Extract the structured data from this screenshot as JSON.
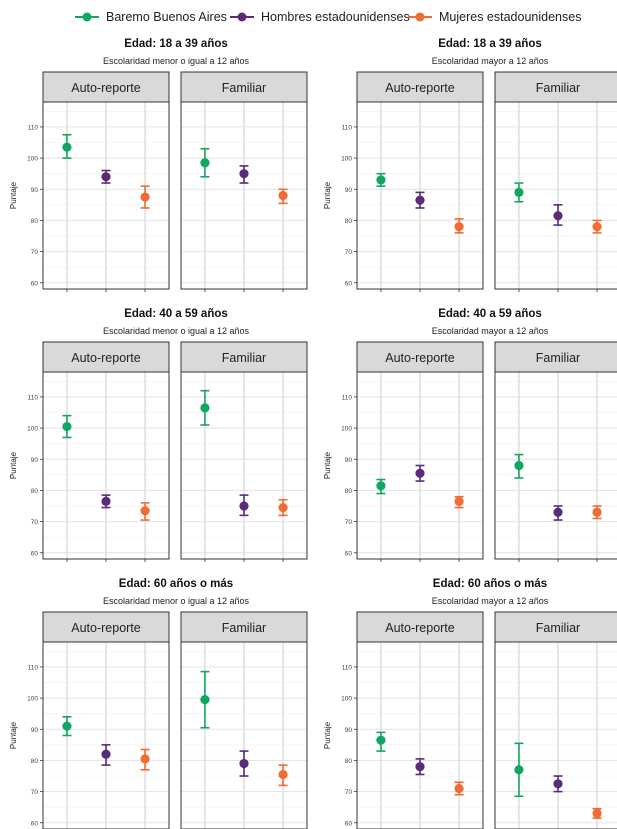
{
  "legend": {
    "items": [
      {
        "label": "Baremo Buenos Aires",
        "color": "#12a760"
      },
      {
        "label": "Hombres estadounidenses",
        "color": "#5b2a78"
      },
      {
        "label": "Mujeres estadounidenses",
        "color": "#ef6c35"
      }
    ]
  },
  "chart_data": [
    {
      "type": "scatter",
      "title": "Edad: 18 a 39 años",
      "subtitle": "Escolaridad menor o igual a 12 años",
      "ylabel": "Puntaje",
      "ylim": [
        58,
        118
      ],
      "yticks": [
        60,
        70,
        80,
        90,
        100,
        110
      ],
      "panels": [
        {
          "label": "Auto-reporte",
          "points": [
            {
              "series": "Baremo Buenos Aires",
              "y": 103.5,
              "lo": 100,
              "hi": 107.5
            },
            {
              "series": "Hombres estadounidenses",
              "y": 94,
              "lo": 92,
              "hi": 96
            },
            {
              "series": "Mujeres estadounidenses",
              "y": 87.5,
              "lo": 84,
              "hi": 91
            }
          ]
        },
        {
          "label": "Familiar",
          "points": [
            {
              "series": "Baremo Buenos Aires",
              "y": 98.5,
              "lo": 94,
              "hi": 103
            },
            {
              "series": "Hombres estadounidenses",
              "y": 95,
              "lo": 92,
              "hi": 97.5
            },
            {
              "series": "Mujeres estadounidenses",
              "y": 88,
              "lo": 85.5,
              "hi": 90
            }
          ]
        }
      ]
    },
    {
      "type": "scatter",
      "title": "Edad: 18 a 39 años",
      "subtitle": "Escolaridad mayor a 12 años",
      "ylabel": "Puntaje",
      "ylim": [
        58,
        118
      ],
      "yticks": [
        60,
        70,
        80,
        90,
        100,
        110
      ],
      "panels": [
        {
          "label": "Auto-reporte",
          "points": [
            {
              "series": "Baremo Buenos Aires",
              "y": 93,
              "lo": 91,
              "hi": 95
            },
            {
              "series": "Hombres estadounidenses",
              "y": 86.5,
              "lo": 84,
              "hi": 89
            },
            {
              "series": "Mujeres estadounidenses",
              "y": 78,
              "lo": 76,
              "hi": 80.5
            }
          ]
        },
        {
          "label": "Familiar",
          "points": [
            {
              "series": "Baremo Buenos Aires",
              "y": 89,
              "lo": 86,
              "hi": 92
            },
            {
              "series": "Hombres estadounidenses",
              "y": 81.5,
              "lo": 78.5,
              "hi": 85
            },
            {
              "series": "Mujeres estadounidenses",
              "y": 78,
              "lo": 76,
              "hi": 80
            }
          ]
        }
      ]
    },
    {
      "type": "scatter",
      "title": "Edad: 40 a 59 años",
      "subtitle": "Escolaridad menor o igual a 12 años",
      "ylabel": "Puntaje",
      "ylim": [
        58,
        118
      ],
      "yticks": [
        60,
        70,
        80,
        90,
        100,
        110
      ],
      "panels": [
        {
          "label": "Auto-reporte",
          "points": [
            {
              "series": "Baremo Buenos Aires",
              "y": 100.5,
              "lo": 97,
              "hi": 104
            },
            {
              "series": "Hombres estadounidenses",
              "y": 76.5,
              "lo": 74.5,
              "hi": 78.5
            },
            {
              "series": "Mujeres estadounidenses",
              "y": 73.5,
              "lo": 70.5,
              "hi": 76
            }
          ]
        },
        {
          "label": "Familiar",
          "points": [
            {
              "series": "Baremo Buenos Aires",
              "y": 106.5,
              "lo": 101,
              "hi": 112
            },
            {
              "series": "Hombres estadounidenses",
              "y": 75,
              "lo": 72,
              "hi": 78.5
            },
            {
              "series": "Mujeres estadounidenses",
              "y": 74.5,
              "lo": 72,
              "hi": 77
            }
          ]
        }
      ]
    },
    {
      "type": "scatter",
      "title": "Edad: 40 a 59 años",
      "subtitle": "Escolaridad mayor a 12 años",
      "ylabel": "Puntaje",
      "ylim": [
        58,
        118
      ],
      "yticks": [
        60,
        70,
        80,
        90,
        100,
        110
      ],
      "panels": [
        {
          "label": "Auto-reporte",
          "points": [
            {
              "series": "Baremo Buenos Aires",
              "y": 81.5,
              "lo": 79,
              "hi": 83.5
            },
            {
              "series": "Hombres estadounidenses",
              "y": 85.5,
              "lo": 83,
              "hi": 88
            },
            {
              "series": "Mujeres estadounidenses",
              "y": 76.5,
              "lo": 74.5,
              "hi": 78
            }
          ]
        },
        {
          "label": "Familiar",
          "points": [
            {
              "series": "Baremo Buenos Aires",
              "y": 88,
              "lo": 84,
              "hi": 91.5
            },
            {
              "series": "Hombres estadounidenses",
              "y": 73,
              "lo": 70.5,
              "hi": 75
            },
            {
              "series": "Mujeres estadounidenses",
              "y": 73,
              "lo": 71,
              "hi": 75
            }
          ]
        }
      ]
    },
    {
      "type": "scatter",
      "title": "Edad: 60 años o más",
      "subtitle": "Escolaridad menor o igual a 12 años",
      "ylabel": "Puntaje",
      "ylim": [
        58,
        118
      ],
      "yticks": [
        60,
        70,
        80,
        90,
        100,
        110
      ],
      "panels": [
        {
          "label": "Auto-reporte",
          "points": [
            {
              "series": "Baremo Buenos Aires",
              "y": 91,
              "lo": 88,
              "hi": 94
            },
            {
              "series": "Hombres estadounidenses",
              "y": 82,
              "lo": 78.5,
              "hi": 85
            },
            {
              "series": "Mujeres estadounidenses",
              "y": 80.5,
              "lo": 77,
              "hi": 83.5
            }
          ]
        },
        {
          "label": "Familiar",
          "points": [
            {
              "series": "Baremo Buenos Aires",
              "y": 99.5,
              "lo": 90.5,
              "hi": 108.5
            },
            {
              "series": "Hombres estadounidenses",
              "y": 79,
              "lo": 75,
              "hi": 83
            },
            {
              "series": "Mujeres estadounidenses",
              "y": 75.5,
              "lo": 72,
              "hi": 78.5
            }
          ]
        }
      ]
    },
    {
      "type": "scatter",
      "title": "Edad: 60 años o más",
      "subtitle": "Escolaridad mayor a 12 años",
      "ylabel": "Puntaje",
      "ylim": [
        58,
        118
      ],
      "yticks": [
        60,
        70,
        80,
        90,
        100,
        110
      ],
      "panels": [
        {
          "label": "Auto-reporte",
          "points": [
            {
              "series": "Baremo Buenos Aires",
              "y": 86.5,
              "lo": 83,
              "hi": 89
            },
            {
              "series": "Hombres estadounidenses",
              "y": 78,
              "lo": 75.5,
              "hi": 80.5
            },
            {
              "series": "Mujeres estadounidenses",
              "y": 71,
              "lo": 69,
              "hi": 73
            }
          ]
        },
        {
          "label": "Familiar",
          "points": [
            {
              "series": "Baremo Buenos Aires",
              "y": 77,
              "lo": 68.5,
              "hi": 85.5
            },
            {
              "series": "Hombres estadounidenses",
              "y": 72.5,
              "lo": 70,
              "hi": 75
            },
            {
              "series": "Mujeres estadounidenses",
              "y": 63,
              "lo": 61.5,
              "hi": 64.5
            }
          ]
        }
      ]
    }
  ]
}
